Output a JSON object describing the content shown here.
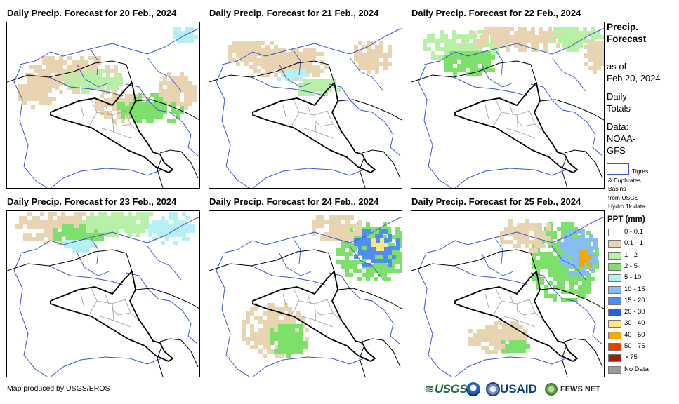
{
  "panels": [
    {
      "title": "Daily Precip. Forecast for 20 Feb., 2024"
    },
    {
      "title": "Daily Precip. Forecast for 21 Feb., 2024"
    },
    {
      "title": "Daily Precip. Forecast for 22 Feb., 2024"
    },
    {
      "title": "Daily Precip. Forecast for 23 Feb., 2024"
    },
    {
      "title": "Daily Precip. Forecast for 24 Feb., 2024"
    },
    {
      "title": "Daily Precip. Forecast for 25 Feb., 2024"
    }
  ],
  "sidebar": {
    "heading_1": "Precip.",
    "heading_2": "Forecast",
    "as_of": "as of",
    "date": "Feb 20, 2024",
    "daily_1": "Daily",
    "daily_2": "Totals",
    "data_1": "Data:",
    "data_2": "NOAA-",
    "data_3": "GFS",
    "basin_1": "Tigres",
    "basin_2": "& Euphrates",
    "basin_3": "Basins",
    "basin_4": "from USGS",
    "basin_5": "Hydro 1k data"
  },
  "legend": {
    "title": "PPT (mm)",
    "items": [
      {
        "label": "0 - 0.1",
        "color": "#ffffff"
      },
      {
        "label": "0.1 - 1",
        "color": "#e8d4b0"
      },
      {
        "label": "1 - 2",
        "color": "#b7f0a6"
      },
      {
        "label": "2 - 5",
        "color": "#7de06a"
      },
      {
        "label": "5 - 10",
        "color": "#b6f0f5"
      },
      {
        "label": "10 - 15",
        "color": "#85bdf4"
      },
      {
        "label": "15 - 20",
        "color": "#4f8df0"
      },
      {
        "label": "20 - 30",
        "color": "#2660e0"
      },
      {
        "label": "30 - 40",
        "color": "#ffe680"
      },
      {
        "label": "40 - 50",
        "color": "#f5a800"
      },
      {
        "label": "50 - 75",
        "color": "#f03a00"
      },
      {
        "label": "> 75",
        "color": "#a01c10"
      },
      {
        "label": "No Data",
        "color": "#9a9a9a"
      }
    ]
  },
  "footer": {
    "credit": "Map produced by USGS/EROS"
  },
  "logos": {
    "usgs": "USGS",
    "usaid": "USAID",
    "fews": "FEWS NET"
  },
  "colors": {
    "border": "#000000",
    "basin": "#3a56c8",
    "province": "#9a9a9a"
  }
}
